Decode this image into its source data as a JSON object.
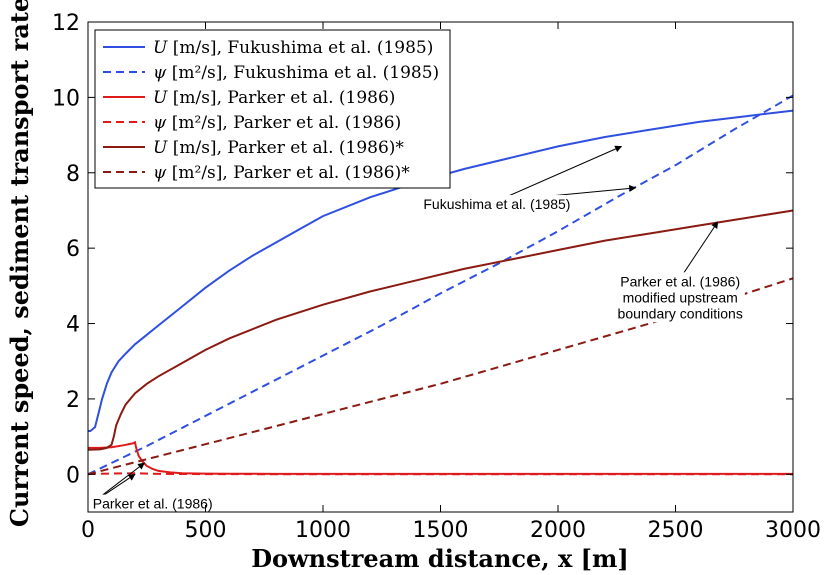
{
  "chart_data": {
    "type": "line",
    "title": "",
    "xlabel": "Downstream distance, x [m]",
    "ylabel": "Current speed, sediment transport rate",
    "xlim": [
      0,
      3000
    ],
    "ylim": [
      -1,
      12
    ],
    "xticks": [
      0,
      500,
      1000,
      1500,
      2000,
      2500,
      3000
    ],
    "yticks": [
      0,
      2,
      4,
      6,
      8,
      10,
      12
    ],
    "grid": false,
    "legend_position": "top-left",
    "series": [
      {
        "name": "U [m/s], Fukushima et al. (1985)",
        "legend_symbol": "U",
        "legend_unit": "[m/s],",
        "legend_source": "Fukushima et al. (1985)",
        "color": "#2f4fe0",
        "dash": "solid",
        "x": [
          0,
          10,
          20,
          30,
          40,
          50,
          60,
          80,
          100,
          130,
          160,
          200,
          250,
          300,
          400,
          500,
          600,
          700,
          800,
          900,
          1000,
          1200,
          1400,
          1600,
          1800,
          2000,
          2200,
          2400,
          2600,
          2800,
          3000
        ],
        "y": [
          1.15,
          1.15,
          1.2,
          1.25,
          1.5,
          1.75,
          2.0,
          2.4,
          2.7,
          3.0,
          3.2,
          3.45,
          3.7,
          3.95,
          4.45,
          4.95,
          5.4,
          5.8,
          6.15,
          6.5,
          6.85,
          7.35,
          7.75,
          8.1,
          8.4,
          8.7,
          8.95,
          9.15,
          9.35,
          9.5,
          9.65
        ]
      },
      {
        "name": "ψ [m²/s], Fukushima et al. (1985)",
        "legend_symbol": "ψ",
        "legend_unit": "[m²/s],",
        "legend_source": "Fukushima et al. (1985)",
        "color": "#2f4fe0",
        "dash": "dashed",
        "x": [
          0,
          250,
          500,
          750,
          1000,
          1250,
          1500,
          1750,
          2000,
          2250,
          2500,
          2750,
          3000
        ],
        "y": [
          0,
          0.75,
          1.55,
          2.35,
          3.15,
          3.95,
          4.8,
          5.6,
          6.45,
          7.35,
          8.2,
          9.15,
          10.05
        ]
      },
      {
        "name": "U [m/s], Parker et al. (1986)",
        "legend_symbol": "U",
        "legend_unit": "[m/s],",
        "legend_source": "Parker et al. (1986)",
        "color": "#e01a1a",
        "dash": "solid",
        "x": [
          0,
          50,
          100,
          150,
          190,
          200,
          205,
          215,
          230,
          250,
          275,
          300,
          350,
          400,
          500,
          600,
          800,
          1000,
          1500,
          2000,
          2500,
          3000
        ],
        "y": [
          0.7,
          0.7,
          0.72,
          0.77,
          0.82,
          0.85,
          0.7,
          0.5,
          0.35,
          0.22,
          0.14,
          0.09,
          0.05,
          0.03,
          0.02,
          0.015,
          0.01,
          0.01,
          0.01,
          0.01,
          0.01,
          0.01
        ]
      },
      {
        "name": "ψ [m²/s], Parker et al. (1986)",
        "legend_symbol": "ψ",
        "legend_unit": "[m²/s],",
        "legend_source": "Parker et al. (1986)",
        "color": "#e01a1a",
        "dash": "dashed",
        "x": [
          0,
          100,
          200,
          300,
          500,
          1000,
          1500,
          2000,
          2500,
          3000
        ],
        "y": [
          0.01,
          0.02,
          0.03,
          0.01,
          0.005,
          0.0,
          0.0,
          0.0,
          0.0,
          0.0
        ]
      },
      {
        "name": "U [m/s], Parker et al. (1986)*",
        "legend_symbol": "U",
        "legend_unit": "[m/s],",
        "legend_source": "Parker et al. (1986)*",
        "color": "#8b1a12",
        "dash": "solid",
        "x": [
          0,
          50,
          80,
          100,
          110,
          120,
          140,
          160,
          200,
          250,
          300,
          400,
          500,
          600,
          800,
          1000,
          1200,
          1400,
          1600,
          1800,
          2000,
          2200,
          2400,
          2600,
          2800,
          3000
        ],
        "y": [
          0.65,
          0.66,
          0.7,
          0.78,
          1.0,
          1.3,
          1.6,
          1.85,
          2.15,
          2.4,
          2.6,
          2.95,
          3.3,
          3.6,
          4.1,
          4.5,
          4.85,
          5.15,
          5.45,
          5.7,
          5.95,
          6.2,
          6.4,
          6.6,
          6.8,
          7.0
        ]
      },
      {
        "name": "ψ [m²/s], Parker et al. (1986)*",
        "legend_symbol": "ψ",
        "legend_unit": "[m²/s],",
        "legend_source": "Parker et al. (1986)*",
        "color": "#8b1a12",
        "dash": "dashed",
        "x": [
          0,
          250,
          500,
          750,
          1000,
          1250,
          1500,
          1750,
          2000,
          2250,
          2500,
          2750,
          3000
        ],
        "y": [
          0,
          0.4,
          0.8,
          1.2,
          1.6,
          2.0,
          2.4,
          2.85,
          3.3,
          3.75,
          4.2,
          4.7,
          5.2
        ]
      }
    ],
    "annotations": [
      {
        "text": [
          "Fukushima et al. (1985)"
        ],
        "anchor": [
          1740,
          7.25
        ],
        "arrows_to": [
          [
            2270,
            8.7
          ],
          [
            2330,
            7.6
          ]
        ]
      },
      {
        "text": [
          "Parker et al. (1986)",
          "modified upstream",
          "boundary conditions"
        ],
        "anchor": [
          2520,
          5.2
        ],
        "arrows_to": [
          [
            2680,
            6.7
          ],
          [
            2710,
            4.55
          ]
        ]
      },
      {
        "text": [
          "Parker et al. (1986)"
        ],
        "anchor": [
          20,
          -0.75
        ],
        "arrows_to": [
          [
            200,
            0.0
          ],
          [
            240,
            0.3
          ]
        ]
      }
    ]
  }
}
